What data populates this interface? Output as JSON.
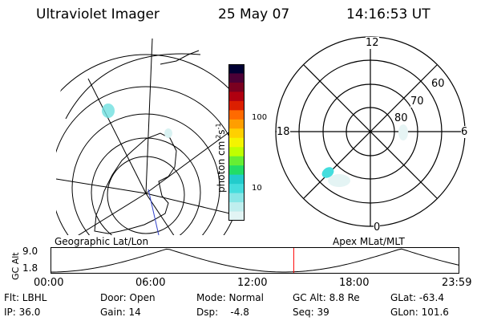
{
  "header": {
    "instrument": "Ultraviolet Imager",
    "date": "25 May 07",
    "time": "14:16:53 UT"
  },
  "colorbar": {
    "label": "photon cm",
    "exp1": "-2",
    "mid": "s",
    "exp2": "-1",
    "ticks": [
      "100",
      "10"
    ],
    "colors": [
      "#000033",
      "#4b0036",
      "#7a0020",
      "#b00010",
      "#dc1f00",
      "#ff6a00",
      "#ff9e00",
      "#ffd000",
      "#f4f400",
      "#bfff00",
      "#66ee33",
      "#22dd66",
      "#22cccc",
      "#44dddd",
      "#88e6e6",
      "#bfeeee",
      "#e2f4f4"
    ]
  },
  "geo": {
    "label": "Geographic Lat/Lon"
  },
  "apex": {
    "label": "Apex MLat/MLT",
    "mlt_labels": [
      "12",
      "18",
      "6",
      "0"
    ],
    "lat_labels": [
      "60",
      "70",
      "80"
    ]
  },
  "timeline": {
    "ylabel": "GC Alt",
    "ytop": "9.0",
    "ybot": "1.8",
    "xticks": [
      "00:00",
      "06:00",
      "12:00",
      "18:00",
      "23:59"
    ],
    "current_fraction": 0.595
  },
  "footer": {
    "col1": [
      "Flt: LBHL",
      "IP: 36.0"
    ],
    "col2": [
      "Door: Open",
      "Gain: 14"
    ],
    "col3": [
      "Mode: Normal",
      "Dsp:    -4.8"
    ],
    "col4": [
      "GC Alt: 8.8 Re",
      "Seq: 39"
    ],
    "col5": [
      "GLat: -63.4",
      "GLon: 101.6"
    ]
  }
}
